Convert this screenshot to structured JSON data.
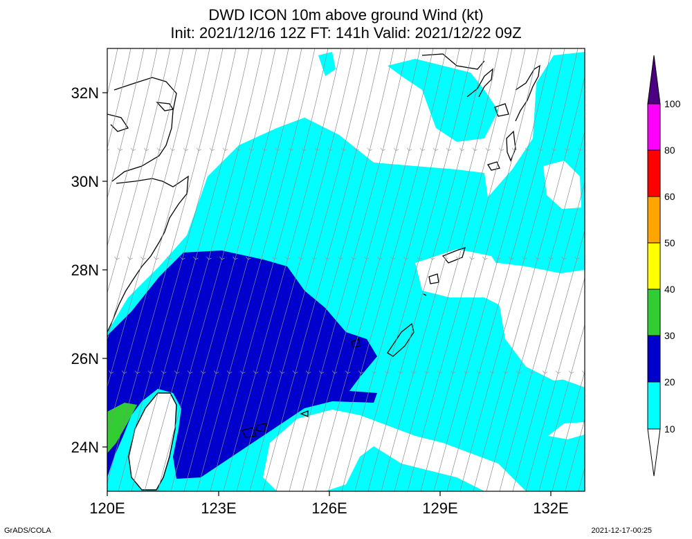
{
  "title": {
    "line1": "DWD ICON 10m above ground Wind (kt)",
    "line2": "Init: 2021/12/16 12Z  FT: 141h  Valid: 2021/12/22 09Z"
  },
  "map": {
    "lon_range": [
      120,
      133
    ],
    "lat_range": [
      23,
      33
    ],
    "lon_ticks": [
      "120E",
      "123E",
      "126E",
      "129E",
      "132E"
    ],
    "lat_ticks": [
      "24N",
      "26N",
      "28N",
      "30N",
      "32N"
    ],
    "field": "10m wind speed (kt) with streamlines",
    "dominant_flow": "northeasterly"
  },
  "colorbar": {
    "levels": [
      "10",
      "20",
      "30",
      "40",
      "50",
      "60",
      "80",
      "100"
    ],
    "colors": [
      "#00ffff",
      "#0000cd",
      "#32cd32",
      "#ffff00",
      "#ffa500",
      "#ff0000",
      "#ff00ff",
      "#4b0082"
    ],
    "below_color": "#ffffff"
  },
  "footer": {
    "left": "GrADS/COLA",
    "right": "2021-12-17-00:25"
  }
}
